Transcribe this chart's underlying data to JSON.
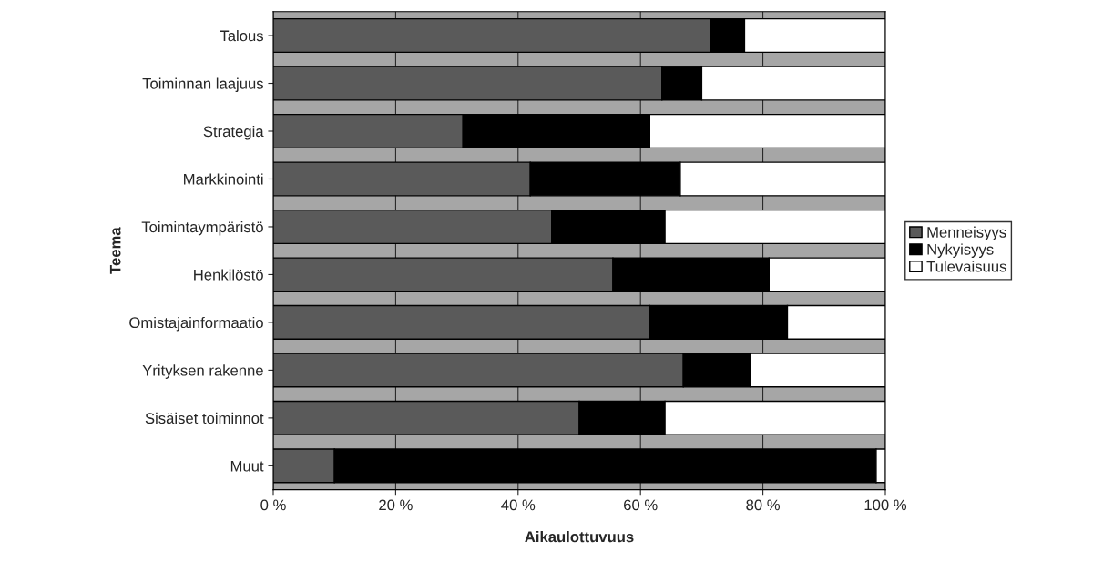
{
  "chart_data": {
    "type": "bar",
    "orientation": "horizontal",
    "stacked": true,
    "categories": [
      "Talous",
      "Toiminnan laajuus",
      "Strategia",
      "Markkinointi",
      "Toimintaympäristö",
      "Henkilöstö",
      "Omistajainformaatio",
      "Yrityksen rakenne",
      "Sisäiset toiminnot",
      "Muut"
    ],
    "series": [
      {
        "name": "Menneisyys",
        "color": "#5a5a5a",
        "values": [
          71.5,
          63.5,
          31,
          42,
          45.5,
          55.5,
          61.5,
          67,
          50,
          10
        ]
      },
      {
        "name": "Nykyisyys",
        "color": "#000000",
        "values": [
          5.5,
          6.5,
          30.5,
          24.5,
          18.5,
          25.5,
          22.5,
          11,
          14,
          88.5
        ]
      },
      {
        "name": "Tulevaisuus",
        "color": "#ffffff",
        "values": [
          23,
          30,
          38.5,
          33.5,
          36,
          19,
          16,
          22,
          36,
          1.5
        ]
      }
    ],
    "xlabel": "Aikaulottuvuus",
    "ylabel": "Teema",
    "xlim": [
      0,
      100
    ],
    "xticks": [
      {
        "value": 0,
        "label": "0 %"
      },
      {
        "value": 20,
        "label": "20 %"
      },
      {
        "value": 40,
        "label": "40 %"
      },
      {
        "value": 60,
        "label": "60 %"
      },
      {
        "value": 80,
        "label": "80 %"
      },
      {
        "value": 100,
        "label": "100 %"
      }
    ],
    "grid": "x",
    "legend": "right"
  }
}
